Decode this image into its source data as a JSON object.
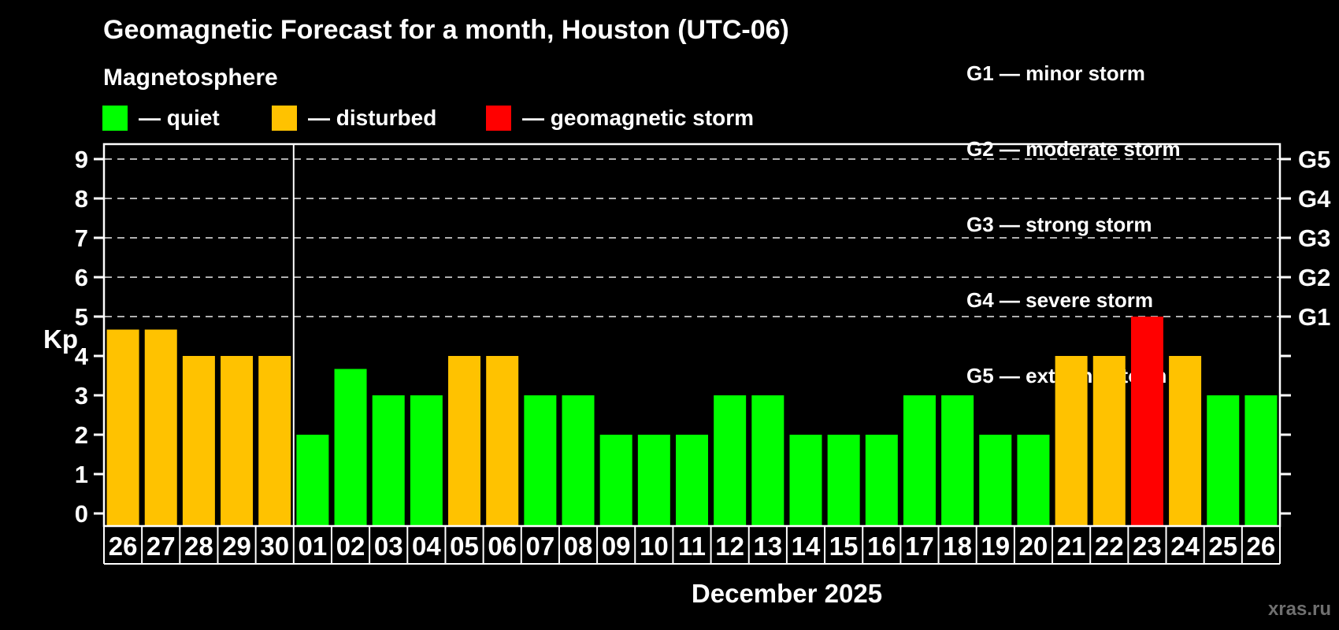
{
  "header": {
    "title": "Geomagnetic Forecast for a month, Houston (UTC-06)",
    "subtitle": "Magnetosphere"
  },
  "legend": {
    "items": [
      {
        "label": "— quiet",
        "status": "quiet",
        "color": "#00ff00"
      },
      {
        "label": "— disturbed",
        "status": "disturbed",
        "color": "#ffc200"
      },
      {
        "label": "— geomagnetic storm",
        "status": "storm",
        "color": "#ff0000"
      }
    ]
  },
  "g_scale": {
    "lines": [
      "G1 — minor storm",
      "G2 — moderate storm",
      "G3 — strong storm",
      "G4 — severe storm",
      "G5 — extreme storm"
    ]
  },
  "footer": {
    "watermark": "xras.ru"
  },
  "colors": {
    "quiet": "#00ff00",
    "disturbed": "#ffc200",
    "storm": "#ff0000",
    "axis": "#ffffff",
    "grid": "#b0b0b0",
    "background": "#000000",
    "watermark": "#6f6f6f"
  },
  "chart_data": {
    "type": "bar",
    "title": "Geomagnetic Forecast for a month, Houston (UTC-06)",
    "ylabel": "Kp",
    "month_label": "December 2025",
    "ylim": [
      0,
      9
    ],
    "grid": "dashed horizontal at Kp 5-9 (G1-G5)",
    "y_ticks": [
      "0",
      "1",
      "2",
      "3",
      "4",
      "5",
      "6",
      "7",
      "8",
      "9"
    ],
    "gridlines_kp": [
      5,
      6,
      7,
      8,
      9
    ],
    "g_labels": [
      {
        "label": "G1",
        "kp": 5
      },
      {
        "label": "G2",
        "kp": 6
      },
      {
        "label": "G3",
        "kp": 7
      },
      {
        "label": "G4",
        "kp": 8
      },
      {
        "label": "G5",
        "kp": 9
      }
    ],
    "month_separator_after": 5,
    "bars": [
      {
        "day": "26",
        "kp": 4.67,
        "status": "disturbed"
      },
      {
        "day": "27",
        "kp": 4.67,
        "status": "disturbed"
      },
      {
        "day": "28",
        "kp": 4,
        "status": "disturbed"
      },
      {
        "day": "29",
        "kp": 4,
        "status": "disturbed"
      },
      {
        "day": "30",
        "kp": 4,
        "status": "disturbed"
      },
      {
        "day": "01",
        "kp": 2,
        "status": "quiet"
      },
      {
        "day": "02",
        "kp": 3.67,
        "status": "quiet"
      },
      {
        "day": "03",
        "kp": 3,
        "status": "quiet"
      },
      {
        "day": "04",
        "kp": 3,
        "status": "quiet"
      },
      {
        "day": "05",
        "kp": 4,
        "status": "disturbed"
      },
      {
        "day": "06",
        "kp": 4,
        "status": "disturbed"
      },
      {
        "day": "07",
        "kp": 3,
        "status": "quiet"
      },
      {
        "day": "08",
        "kp": 3,
        "status": "quiet"
      },
      {
        "day": "09",
        "kp": 2,
        "status": "quiet"
      },
      {
        "day": "10",
        "kp": 2,
        "status": "quiet"
      },
      {
        "day": "11",
        "kp": 2,
        "status": "quiet"
      },
      {
        "day": "12",
        "kp": 3,
        "status": "quiet"
      },
      {
        "day": "13",
        "kp": 3,
        "status": "quiet"
      },
      {
        "day": "14",
        "kp": 2,
        "status": "quiet"
      },
      {
        "day": "15",
        "kp": 2,
        "status": "quiet"
      },
      {
        "day": "16",
        "kp": 2,
        "status": "quiet"
      },
      {
        "day": "17",
        "kp": 3,
        "status": "quiet"
      },
      {
        "day": "18",
        "kp": 3,
        "status": "quiet"
      },
      {
        "day": "19",
        "kp": 2,
        "status": "quiet"
      },
      {
        "day": "20",
        "kp": 2,
        "status": "quiet"
      },
      {
        "day": "21",
        "kp": 4,
        "status": "disturbed"
      },
      {
        "day": "22",
        "kp": 4,
        "status": "disturbed"
      },
      {
        "day": "23",
        "kp": 5,
        "status": "storm"
      },
      {
        "day": "24",
        "kp": 4,
        "status": "disturbed"
      },
      {
        "day": "25",
        "kp": 3,
        "status": "quiet"
      },
      {
        "day": "26",
        "kp": 3,
        "status": "quiet"
      }
    ]
  }
}
